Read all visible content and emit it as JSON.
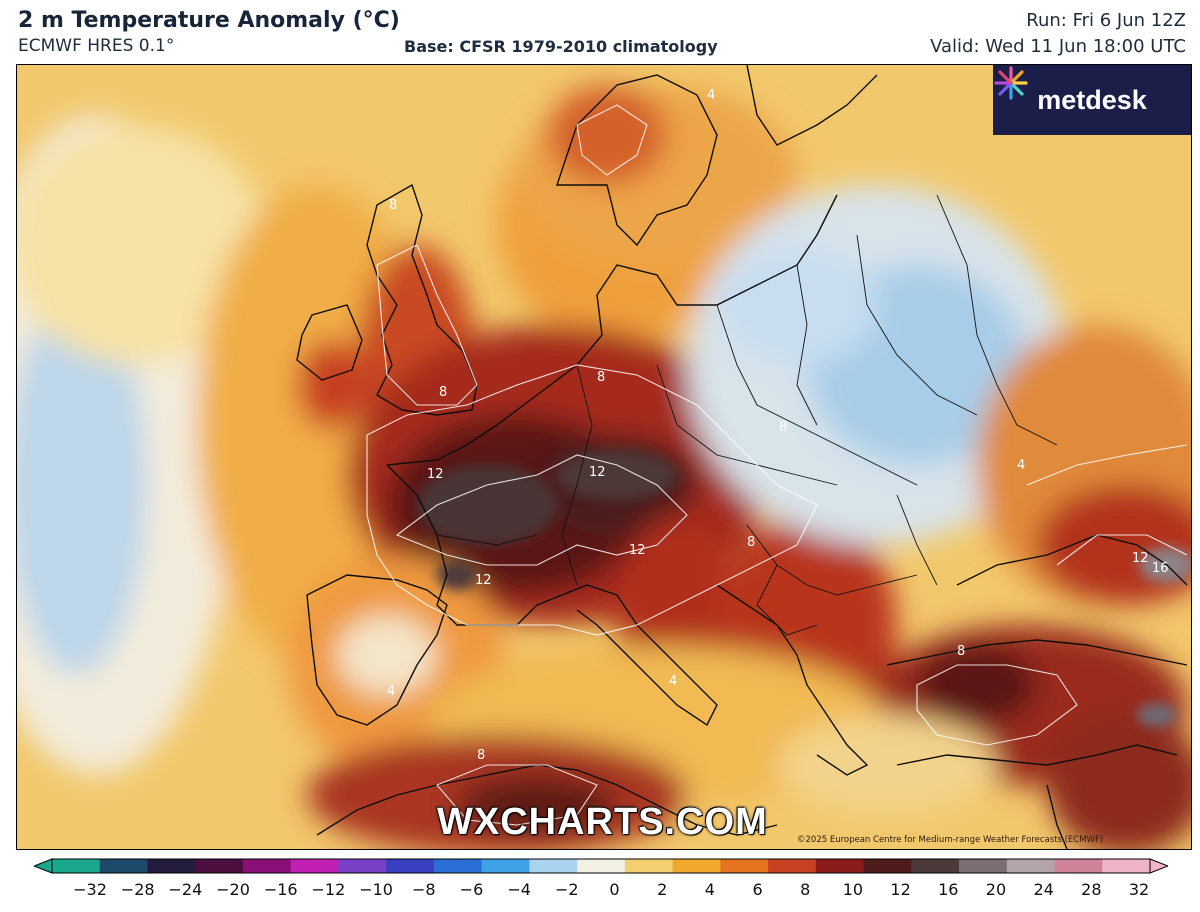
{
  "header": {
    "title": "2 m Temperature Anomaly (°C)",
    "model": "ECMWF HRES 0.1°",
    "base": "Base: CFSR 1979-2010 climatology",
    "run": "Run: Fri 6 Jun 12Z",
    "valid": "Valid: Wed 11 Jun 18:00 UTC"
  },
  "logo": {
    "text": "metdesk",
    "icon": "starburst-icon"
  },
  "watermark": "WXCHARTS.COM",
  "copyright": "©2025 European Centre for Medium-range Weather Forecasts (ECMWF)",
  "colorbar": {
    "ticks": [
      "−32",
      "−28",
      "−24",
      "−20",
      "−16",
      "−12",
      "−10",
      "−8",
      "−6",
      "−4",
      "−2",
      "0",
      "2",
      "4",
      "6",
      "8",
      "10",
      "12",
      "16",
      "20",
      "24",
      "28",
      "32"
    ],
    "colors": [
      "#19a88c",
      "#1d4a6a",
      "#241c3d",
      "#4d0f3e",
      "#8a0f77",
      "#c21fb5",
      "#7a3fc7",
      "#3a3fc0",
      "#2a6fd6",
      "#3fa2e6",
      "#a9d3ee",
      "#f3f0e4",
      "#f2cf6f",
      "#f0a92c",
      "#e5731f",
      "#c84221",
      "#8c1b1b",
      "#4e1a1a",
      "#4b3a3a",
      "#7d6e72",
      "#b2a4a8",
      "#cf8298",
      "#f0b4c8"
    ]
  },
  "map_labels": [
    {
      "text": "12",
      "region": "France"
    },
    {
      "text": "12",
      "region": "Alps"
    },
    {
      "text": "12",
      "region": "Northern Italy"
    },
    {
      "text": "12",
      "region": "Pyrenees"
    },
    {
      "text": "12",
      "region": "Black Sea coast"
    },
    {
      "text": "16",
      "region": "Black Sea coast"
    },
    {
      "text": "8",
      "region": "Scotland"
    },
    {
      "text": "8",
      "region": "England"
    },
    {
      "text": "8",
      "region": "Germany"
    },
    {
      "text": "8",
      "region": "Czechia"
    },
    {
      "text": "8",
      "region": "Balkans"
    },
    {
      "text": "8",
      "region": "Anatolia"
    },
    {
      "text": "8",
      "region": "North Africa"
    },
    {
      "text": "4",
      "region": "Scandinavia"
    },
    {
      "text": "4",
      "region": "Iberia"
    },
    {
      "text": "4",
      "region": "Ukraine"
    },
    {
      "text": "4",
      "region": "Mediterranean"
    }
  ]
}
